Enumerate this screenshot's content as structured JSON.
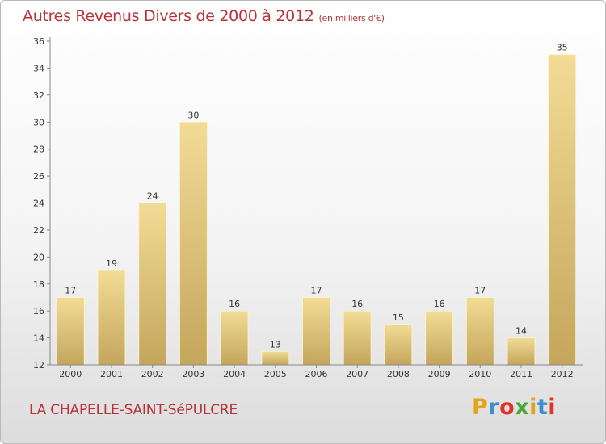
{
  "header": {
    "title": "Autres Revenus Divers de 2000 à 2012",
    "subtitle": "(en milliers d'€)"
  },
  "footer": {
    "commune": "LA CHAPELLE-SAINT-SéPULCRE",
    "logo": {
      "letters": [
        "P",
        "r",
        "o",
        "x",
        "i",
        "t",
        "i"
      ],
      "colors": [
        "#e8a21a",
        "#3a8fd0",
        "#e0342a",
        "#4aa83a",
        "#e8a21a",
        "#3a8fd0",
        "#e0342a"
      ]
    }
  },
  "chart_data": {
    "type": "bar",
    "categories": [
      "2000",
      "2001",
      "2002",
      "2003",
      "2004",
      "2005",
      "2006",
      "2007",
      "2008",
      "2009",
      "2010",
      "2011",
      "2012"
    ],
    "values": [
      17,
      19,
      24,
      30,
      16,
      13,
      17,
      16,
      15,
      16,
      17,
      14,
      35
    ],
    "data_labels": [
      "17",
      "19",
      "24",
      "30",
      "16",
      "13",
      "17",
      "16",
      "15",
      "16",
      "17",
      "14",
      "35"
    ],
    "ylim": [
      12,
      36
    ],
    "yticks": [
      12,
      14,
      16,
      18,
      20,
      22,
      24,
      26,
      28,
      30,
      32,
      34,
      36
    ],
    "xlabel": "",
    "ylabel": "",
    "grid": false,
    "bar_color": "#e8cf86"
  }
}
